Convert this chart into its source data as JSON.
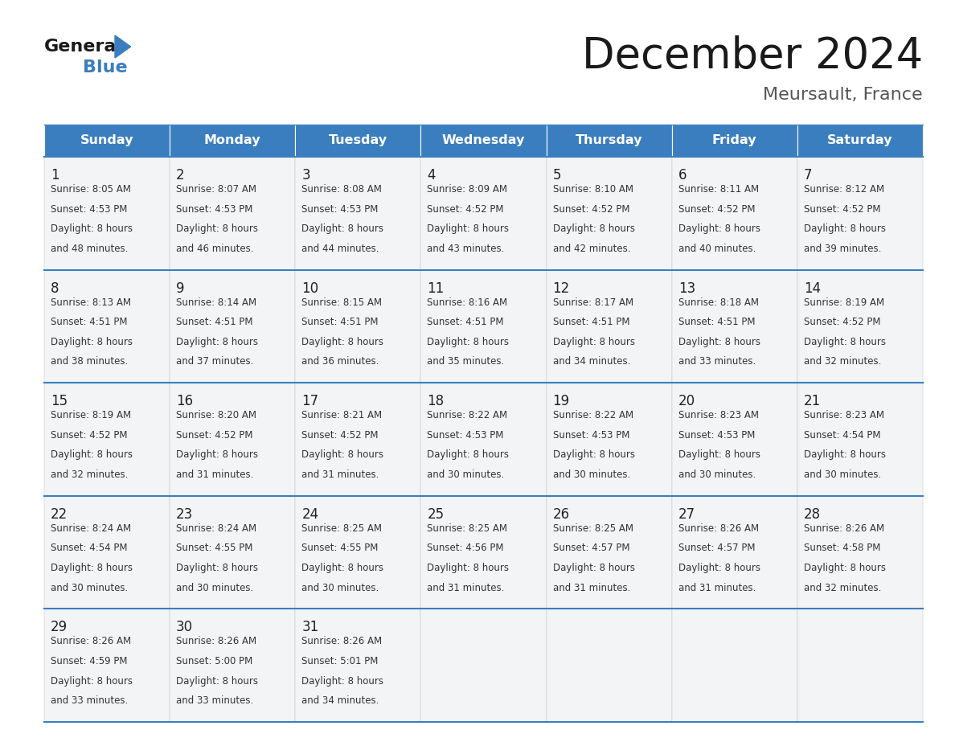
{
  "title": "December 2024",
  "subtitle": "Meursault, France",
  "header_color": "#3A7EBF",
  "header_text_color": "#FFFFFF",
  "cell_bg_color": "#F0F4F8",
  "line_color": "#3A7EBF",
  "days_of_week": [
    "Sunday",
    "Monday",
    "Tuesday",
    "Wednesday",
    "Thursday",
    "Friday",
    "Saturday"
  ],
  "weeks": [
    [
      {
        "day": 1,
        "sunrise": "8:05 AM",
        "sunset": "4:53 PM",
        "daylight_h": "8 hours",
        "daylight_m": "and 48 minutes."
      },
      {
        "day": 2,
        "sunrise": "8:07 AM",
        "sunset": "4:53 PM",
        "daylight_h": "8 hours",
        "daylight_m": "and 46 minutes."
      },
      {
        "day": 3,
        "sunrise": "8:08 AM",
        "sunset": "4:53 PM",
        "daylight_h": "8 hours",
        "daylight_m": "and 44 minutes."
      },
      {
        "day": 4,
        "sunrise": "8:09 AM",
        "sunset": "4:52 PM",
        "daylight_h": "8 hours",
        "daylight_m": "and 43 minutes."
      },
      {
        "day": 5,
        "sunrise": "8:10 AM",
        "sunset": "4:52 PM",
        "daylight_h": "8 hours",
        "daylight_m": "and 42 minutes."
      },
      {
        "day": 6,
        "sunrise": "8:11 AM",
        "sunset": "4:52 PM",
        "daylight_h": "8 hours",
        "daylight_m": "and 40 minutes."
      },
      {
        "day": 7,
        "sunrise": "8:12 AM",
        "sunset": "4:52 PM",
        "daylight_h": "8 hours",
        "daylight_m": "and 39 minutes."
      }
    ],
    [
      {
        "day": 8,
        "sunrise": "8:13 AM",
        "sunset": "4:51 PM",
        "daylight_h": "8 hours",
        "daylight_m": "and 38 minutes."
      },
      {
        "day": 9,
        "sunrise": "8:14 AM",
        "sunset": "4:51 PM",
        "daylight_h": "8 hours",
        "daylight_m": "and 37 minutes."
      },
      {
        "day": 10,
        "sunrise": "8:15 AM",
        "sunset": "4:51 PM",
        "daylight_h": "8 hours",
        "daylight_m": "and 36 minutes."
      },
      {
        "day": 11,
        "sunrise": "8:16 AM",
        "sunset": "4:51 PM",
        "daylight_h": "8 hours",
        "daylight_m": "and 35 minutes."
      },
      {
        "day": 12,
        "sunrise": "8:17 AM",
        "sunset": "4:51 PM",
        "daylight_h": "8 hours",
        "daylight_m": "and 34 minutes."
      },
      {
        "day": 13,
        "sunrise": "8:18 AM",
        "sunset": "4:51 PM",
        "daylight_h": "8 hours",
        "daylight_m": "and 33 minutes."
      },
      {
        "day": 14,
        "sunrise": "8:19 AM",
        "sunset": "4:52 PM",
        "daylight_h": "8 hours",
        "daylight_m": "and 32 minutes."
      }
    ],
    [
      {
        "day": 15,
        "sunrise": "8:19 AM",
        "sunset": "4:52 PM",
        "daylight_h": "8 hours",
        "daylight_m": "and 32 minutes."
      },
      {
        "day": 16,
        "sunrise": "8:20 AM",
        "sunset": "4:52 PM",
        "daylight_h": "8 hours",
        "daylight_m": "and 31 minutes."
      },
      {
        "day": 17,
        "sunrise": "8:21 AM",
        "sunset": "4:52 PM",
        "daylight_h": "8 hours",
        "daylight_m": "and 31 minutes."
      },
      {
        "day": 18,
        "sunrise": "8:22 AM",
        "sunset": "4:53 PM",
        "daylight_h": "8 hours",
        "daylight_m": "and 30 minutes."
      },
      {
        "day": 19,
        "sunrise": "8:22 AM",
        "sunset": "4:53 PM",
        "daylight_h": "8 hours",
        "daylight_m": "and 30 minutes."
      },
      {
        "day": 20,
        "sunrise": "8:23 AM",
        "sunset": "4:53 PM",
        "daylight_h": "8 hours",
        "daylight_m": "and 30 minutes."
      },
      {
        "day": 21,
        "sunrise": "8:23 AM",
        "sunset": "4:54 PM",
        "daylight_h": "8 hours",
        "daylight_m": "and 30 minutes."
      }
    ],
    [
      {
        "day": 22,
        "sunrise": "8:24 AM",
        "sunset": "4:54 PM",
        "daylight_h": "8 hours",
        "daylight_m": "and 30 minutes."
      },
      {
        "day": 23,
        "sunrise": "8:24 AM",
        "sunset": "4:55 PM",
        "daylight_h": "8 hours",
        "daylight_m": "and 30 minutes."
      },
      {
        "day": 24,
        "sunrise": "8:25 AM",
        "sunset": "4:55 PM",
        "daylight_h": "8 hours",
        "daylight_m": "and 30 minutes."
      },
      {
        "day": 25,
        "sunrise": "8:25 AM",
        "sunset": "4:56 PM",
        "daylight_h": "8 hours",
        "daylight_m": "and 31 minutes."
      },
      {
        "day": 26,
        "sunrise": "8:25 AM",
        "sunset": "4:57 PM",
        "daylight_h": "8 hours",
        "daylight_m": "and 31 minutes."
      },
      {
        "day": 27,
        "sunrise": "8:26 AM",
        "sunset": "4:57 PM",
        "daylight_h": "8 hours",
        "daylight_m": "and 31 minutes."
      },
      {
        "day": 28,
        "sunrise": "8:26 AM",
        "sunset": "4:58 PM",
        "daylight_h": "8 hours",
        "daylight_m": "and 32 minutes."
      }
    ],
    [
      {
        "day": 29,
        "sunrise": "8:26 AM",
        "sunset": "4:59 PM",
        "daylight_h": "8 hours",
        "daylight_m": "and 33 minutes."
      },
      {
        "day": 30,
        "sunrise": "8:26 AM",
        "sunset": "5:00 PM",
        "daylight_h": "8 hours",
        "daylight_m": "and 33 minutes."
      },
      {
        "day": 31,
        "sunrise": "8:26 AM",
        "sunset": "5:01 PM",
        "daylight_h": "8 hours",
        "daylight_m": "and 34 minutes."
      },
      null,
      null,
      null,
      null
    ]
  ]
}
